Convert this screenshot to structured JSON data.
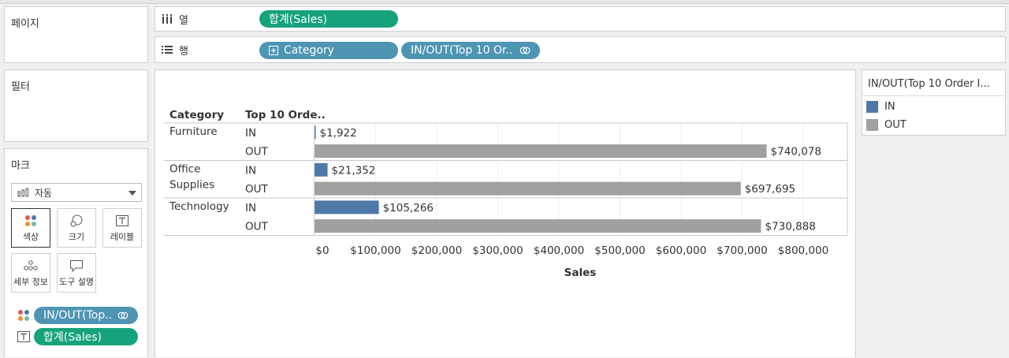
{
  "panels": {
    "pages": "페이지",
    "filters": "필터",
    "marks": "마크"
  },
  "shelves": {
    "columns_label": "열",
    "rows_label": "행",
    "columns_pill": "합계(Sales)",
    "rows_pills": [
      "Category",
      "IN/OUT(Top 10 Or.."
    ]
  },
  "marks": {
    "type": "자동",
    "cards": [
      "색상",
      "크기",
      "레이블",
      "세부 정보",
      "도구 설명"
    ],
    "color_pill": "IN/OUT(Top..",
    "label_pill": "합계(Sales)"
  },
  "legend": {
    "title": "IN/OUT(Top 10 Order I...",
    "items": [
      {
        "label": "IN",
        "color": "#4e79a7"
      },
      {
        "label": "OUT",
        "color": "#a0a0a0"
      }
    ]
  },
  "chart_data": {
    "type": "bar",
    "orientation": "horizontal",
    "header_category": "Category",
    "header_sub": "Top 10 Orde..",
    "xlabel": "Sales",
    "xlim": [
      0,
      850000
    ],
    "xticks": [
      0,
      100000,
      200000,
      300000,
      400000,
      500000,
      600000,
      700000,
      800000
    ],
    "xtick_labels": [
      "$0",
      "$100,000",
      "$200,000",
      "$300,000",
      "$400,000",
      "$500,000",
      "$600,000",
      "$700,000",
      "$800,000"
    ],
    "groups": [
      {
        "category": [
          "Furniture"
        ],
        "bars": [
          {
            "segment": "IN",
            "value": 1922,
            "label": "$1,922"
          },
          {
            "segment": "OUT",
            "value": 740078,
            "label": "$740,078"
          }
        ]
      },
      {
        "category": [
          "Office",
          "Supplies"
        ],
        "bars": [
          {
            "segment": "IN",
            "value": 21352,
            "label": "$21,352"
          },
          {
            "segment": "OUT",
            "value": 697695,
            "label": "$697,695"
          }
        ]
      },
      {
        "category": [
          "Technology"
        ],
        "bars": [
          {
            "segment": "IN",
            "value": 105266,
            "label": "$105,266"
          },
          {
            "segment": "OUT",
            "value": 730888,
            "label": "$730,888"
          }
        ]
      }
    ]
  }
}
